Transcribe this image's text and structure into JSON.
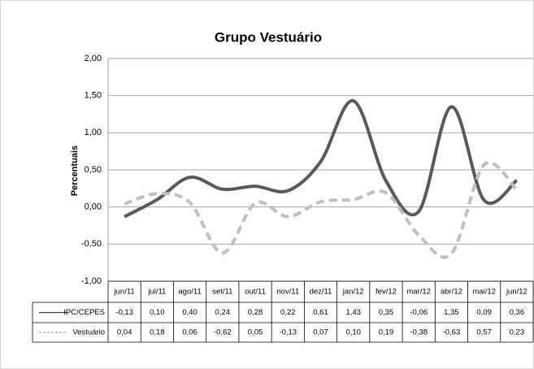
{
  "chart_data": {
    "type": "line",
    "title": "Grupo Vestuário",
    "y_label": "Percentuais",
    "categories": [
      "jun/11",
      "jul/11",
      "ago/11",
      "set/11",
      "out/11",
      "nov/11",
      "dez/11",
      "jan/12",
      "fev/12",
      "mar/12",
      "abr/12",
      "mai/12",
      "jun/12"
    ],
    "series": [
      {
        "name": "IPC/CEPES",
        "color": "#595959",
        "dash": false,
        "values": [
          -0.13,
          0.1,
          0.4,
          0.24,
          0.28,
          0.22,
          0.61,
          1.43,
          0.35,
          -0.06,
          1.35,
          0.09,
          0.36
        ],
        "value_labels": [
          "-0,13",
          "0,10",
          "0,40",
          "0,24",
          "0,28",
          "0,22",
          "0,61",
          "1,43",
          "0,35",
          "-0,06",
          "1,35",
          "0,09",
          "0,36"
        ]
      },
      {
        "name": "Vestuário",
        "color": "#bfbfbf",
        "dash": true,
        "values": [
          0.04,
          0.18,
          0.06,
          -0.62,
          0.05,
          -0.13,
          0.07,
          0.1,
          0.19,
          -0.38,
          -0.63,
          0.57,
          0.23
        ],
        "value_labels": [
          "0,04",
          "0,18",
          "0,06",
          "-0,62",
          "0,05",
          "-0,13",
          "0,07",
          "0,10",
          "0,19",
          "-0,38",
          "-0,63",
          "0,57",
          "0,23"
        ]
      }
    ],
    "ylim": [
      -1,
      2
    ],
    "yticks": [
      {
        "value": -1,
        "label": "-1,00"
      },
      {
        "value": -0.5,
        "label": "-0,50"
      },
      {
        "value": 0,
        "label": "0,00"
      },
      {
        "value": 0.5,
        "label": "0,50"
      },
      {
        "value": 1,
        "label": "1,00"
      },
      {
        "value": 1.5,
        "label": "1,50"
      },
      {
        "value": 2,
        "label": "2,00"
      }
    ],
    "grid": true
  }
}
